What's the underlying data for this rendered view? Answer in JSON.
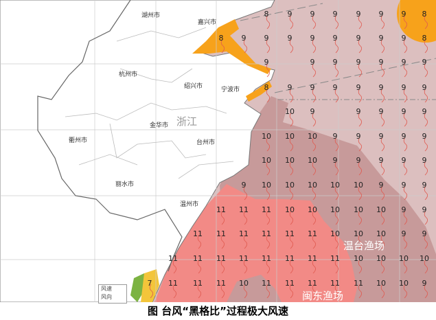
{
  "caption": "图  台风“黑格比”过程极大风速",
  "province_label": "浙江",
  "cities": [
    {
      "name": "湖州市"
    },
    {
      "name": "嘉兴市"
    },
    {
      "name": "杭州市"
    },
    {
      "name": "绍兴市"
    },
    {
      "name": "宁波市"
    },
    {
      "name": "金华市"
    },
    {
      "name": "衢州市"
    },
    {
      "name": "台州市"
    },
    {
      "name": "丽水市"
    },
    {
      "name": "温州市"
    }
  ],
  "fishing_grounds": [
    "温台渔场",
    "闽东渔场"
  ],
  "legend": {
    "items": [
      "风速",
      "风向"
    ]
  },
  "colors": {
    "level6": "#7cb342",
    "level7": "#f3c53a",
    "level8": "#f7a21b",
    "level9": "#dcbfbf",
    "level10": "#c79a9a",
    "level11": "#f28a86",
    "land": "#ffffff",
    "barb": "#e05a50"
  },
  "wind_grid": [
    [
      null,
      null,
      null,
      null,
      null,
      8,
      9,
      9,
      9,
      9,
      9,
      9,
      8
    ],
    [
      null,
      null,
      null,
      8,
      9,
      9,
      9,
      9,
      9,
      9,
      9,
      9,
      8
    ],
    [
      null,
      null,
      null,
      null,
      null,
      9,
      null,
      9,
      9,
      9,
      9,
      9,
      9
    ],
    [
      null,
      null,
      null,
      null,
      null,
      8,
      9,
      9,
      9,
      9,
      9,
      9,
      9
    ],
    [
      null,
      null,
      null,
      null,
      null,
      null,
      10,
      9,
      null,
      9,
      9,
      9,
      9
    ],
    [
      null,
      null,
      null,
      null,
      null,
      10,
      10,
      10,
      9,
      9,
      9,
      9,
      9
    ],
    [
      null,
      null,
      null,
      null,
      null,
      10,
      10,
      10,
      9,
      9,
      9,
      9,
      9
    ],
    [
      null,
      null,
      null,
      null,
      9,
      10,
      10,
      10,
      10,
      10,
      9,
      9,
      9
    ],
    [
      null,
      null,
      null,
      11,
      11,
      11,
      10,
      10,
      10,
      10,
      10,
      9,
      9
    ],
    [
      null,
      null,
      11,
      11,
      11,
      11,
      11,
      11,
      10,
      10,
      10,
      9,
      9
    ],
    [
      null,
      11,
      11,
      11,
      11,
      11,
      11,
      11,
      11,
      10,
      10,
      10,
      10
    ],
    [
      7,
      11,
      11,
      11,
      10,
      11,
      11,
      11,
      11,
      11,
      10,
      10,
      9
    ]
  ]
}
